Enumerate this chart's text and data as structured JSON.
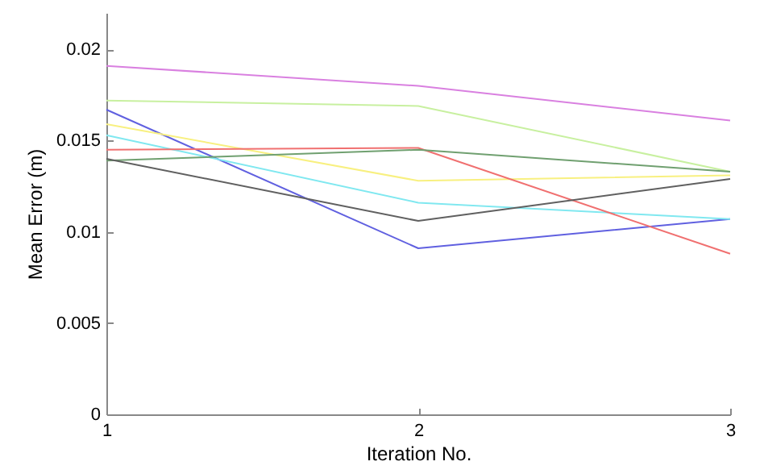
{
  "chart_data": {
    "type": "line",
    "xlabel": "Iteration No.",
    "ylabel": "Mean Error (m)",
    "x": [
      1,
      2,
      3
    ],
    "xlim": [
      1,
      3
    ],
    "xticks": [
      1,
      2,
      3
    ],
    "ylim": [
      0,
      0.022
    ],
    "yticks": [
      0,
      0.005,
      0.01,
      0.015,
      0.02
    ],
    "grid": false,
    "marker": "none",
    "line_style": "solid",
    "series": [
      {
        "color": "#d980e0",
        "values": [
          0.0191,
          0.018,
          0.0161
        ]
      },
      {
        "color": "#c8f0a0",
        "values": [
          0.0172,
          0.0169,
          0.0133
        ]
      },
      {
        "color": "#6060e0",
        "values": [
          0.0167,
          0.0091,
          0.0107
        ]
      },
      {
        "color": "#f8f080",
        "values": [
          0.0159,
          0.0128,
          0.0131
        ]
      },
      {
        "color": "#80e8f0",
        "values": [
          0.0153,
          0.0116,
          0.0107
        ]
      },
      {
        "color": "#f07070",
        "values": [
          0.0145,
          0.0146,
          0.0088
        ]
      },
      {
        "color": "#70a070",
        "values": [
          0.0139,
          0.0145,
          0.0133
        ]
      },
      {
        "color": "#606060",
        "values": [
          0.014,
          0.0106,
          0.0129
        ]
      }
    ]
  }
}
